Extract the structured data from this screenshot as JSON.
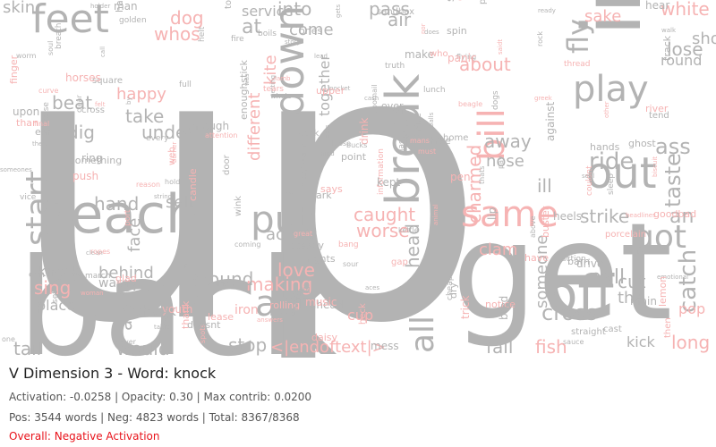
{
  "colors": {
    "gray": "#b3b3b3",
    "pink": "#f6b3b3",
    "negative": "#e8121a"
  },
  "title": "V Dimension 3 - Word: knock",
  "stats_line": "Activation: -0.0258 | Opacity: 0.30 | Max contrib: 0.0200",
  "counts_line": "Pos: 3544 words | Neg: 4823 words | Total: 8367/8368",
  "overall_line": "Overall: Negative Activation",
  "cloud": {
    "large": [
      "up",
      "back",
      "get",
      "reach",
      "put",
      "out",
      "down",
      "break",
      "feet",
      "in",
      "same",
      "off",
      "start",
      "play",
      "bill",
      "act",
      "all",
      "fly",
      "caught",
      "worse",
      "dog",
      "whos",
      "white",
      "lose",
      "short",
      "round",
      "ride",
      "taste",
      "catch",
      "pull",
      "strike",
      "cross",
      "fish",
      "long",
      "got",
      "would",
      "stop",
      "tail",
      "knock",
      "sing",
      "love",
      "making",
      "the",
      "cut",
      "an",
      "about",
      "away",
      "nose",
      "hand",
      "sell",
      "take",
      "under",
      "beat",
      "dig",
      "happy",
      "across",
      "behind",
      "face",
      "along",
      "around",
      "check",
      "warm",
      "place",
      "skin",
      "pass",
      "air",
      "into",
      "come",
      "at",
      "kite",
      "different",
      "charmed",
      "together",
      "ill",
      "head",
      "someone",
      "fall",
      "clam",
      "cup",
      "kick",
      "iron",
      "pop",
      "sake",
      "ass",
      "service"
    ],
    "small": [
      "<|endoftext|>",
      "give",
      "on",
      "spin",
      "flying",
      "golden",
      "ring",
      "yet",
      "never",
      "doornail",
      "enoughstick",
      "youth",
      "mans",
      "square",
      "there",
      "tend",
      "old",
      "full",
      "it",
      "main",
      "sandbox",
      "every",
      "thank",
      "last",
      "ahead",
      "march",
      "worm",
      "dry",
      "hat",
      "aces",
      "gets",
      "raise",
      "rock",
      "does",
      "doors",
      "rights",
      "lip",
      "set",
      "by",
      "dark",
      "drink",
      "pen",
      "daisy",
      "bang",
      "mess",
      "ones",
      "home",
      "point",
      "ear",
      "panic",
      "reason",
      "biscuit",
      "port",
      "lease",
      "thread",
      "sleep",
      "pocket",
      "tongue",
      "bark",
      "lamb",
      "clean",
      "cash",
      "pay",
      "cast",
      "against",
      "ropes",
      "through",
      "headlines",
      "candle",
      "goodbad",
      "information",
      "action",
      "nice",
      "answers",
      "music",
      "other",
      "final",
      "heels",
      "lead",
      "hold",
      "kettle",
      "someones",
      "nor",
      "great",
      "man",
      "drive",
      "upon",
      "balls",
      "make",
      "finger",
      "curve",
      "heck",
      "breath",
      "clear",
      "pinch",
      "porcelain",
      "upper",
      "must",
      "push",
      "above",
      "something",
      "getting",
      "dogs",
      "messenger",
      "steady",
      "emotional",
      "attention",
      "hands",
      "glad",
      "wink",
      "boils",
      "one",
      "crowd",
      "hike",
      "holder",
      "shoes",
      "spots",
      "strings",
      "burner",
      "vice",
      "river",
      "pace",
      "sour",
      "lemon",
      "beagle",
      "tears",
      "hear",
      "sauce",
      "coming",
      "over",
      "barn",
      "can",
      "mind",
      "was",
      "call",
      "fire",
      "soul",
      "door",
      "straight",
      "who",
      "web",
      "animal",
      "notice",
      "gap",
      "rolling",
      "manner",
      "then",
      "greek",
      "horses",
      "woman",
      "says",
      "saidt",
      "guard",
      "cross",
      "kept",
      "helt",
      "whole",
      "table",
      "cheap",
      "walk",
      "story",
      "blows",
      "bucks",
      "buster",
      "doesnt",
      "trick",
      "than",
      "couldnt",
      "felt",
      "have",
      "seal",
      "truth",
      "thats",
      "ghost",
      "lunch",
      "loose",
      "bred",
      "track",
      "ready"
    ]
  }
}
